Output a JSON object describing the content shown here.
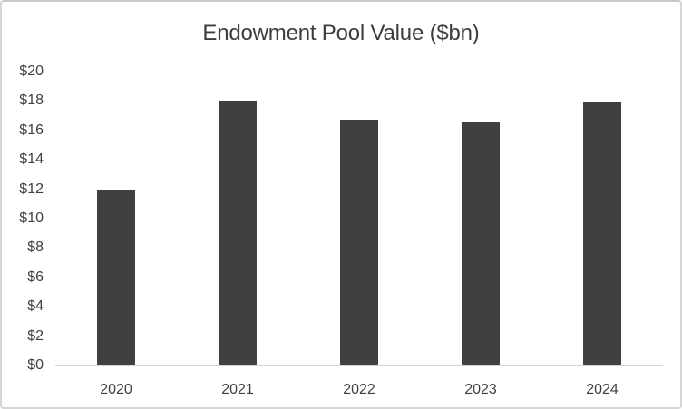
{
  "chart_data": {
    "type": "bar",
    "title": "Endowment Pool Value ($bn)",
    "categories": [
      "2020",
      "2021",
      "2022",
      "2023",
      "2024"
    ],
    "values": [
      11.9,
      18.0,
      16.7,
      16.6,
      17.9
    ],
    "series": [
      {
        "name": "Endowment Pool Value ($bn)",
        "values": [
          11.9,
          18.0,
          16.7,
          16.6,
          17.9
        ]
      }
    ],
    "xlabel": "",
    "ylabel": "",
    "ylim": [
      0,
      20
    ],
    "ytick_step": 2,
    "ytick_labels": [
      "$0",
      "$2",
      "$4",
      "$6",
      "$8",
      "$10",
      "$12",
      "$14",
      "$16",
      "$18",
      "$20"
    ],
    "grid": "off",
    "legend_position": "none",
    "colors": {
      "bar_fill": "#404040",
      "axis_line": "#d5d5d5",
      "tick_text": "#404040",
      "title_text": "#3d3d3d",
      "background": "#ffffff"
    }
  }
}
